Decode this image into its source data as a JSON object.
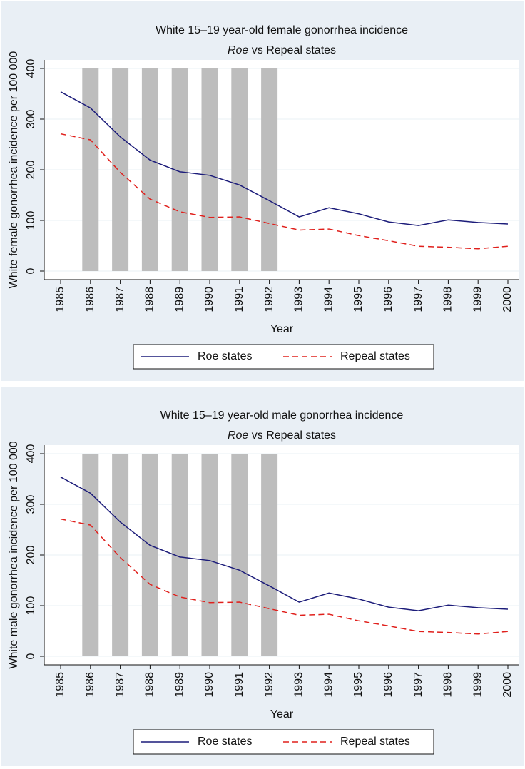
{
  "chart_data": [
    {
      "type": "line",
      "title": "White 15–19 year-old female gonorrhea incidence",
      "subtitle": [
        {
          "text": "Roe",
          "italic": true
        },
        {
          "text": " vs Repeal states"
        }
      ],
      "x_label": "Year",
      "y_label": "White female gonorrhea incidence per 100 000",
      "x": [
        1985,
        1986,
        1987,
        1988,
        1989,
        1990,
        1991,
        1992,
        1993,
        1994,
        1995,
        1996,
        1997,
        1998,
        1999,
        2000
      ],
      "series": [
        {
          "name": "Roe states",
          "color": "#1c1c7a",
          "dash": false,
          "values": [
            354,
            322,
            265,
            219,
            196,
            189,
            170,
            139,
            107,
            125,
            113,
            97,
            90,
            101,
            96,
            93
          ]
        },
        {
          "name": "Repeal states",
          "color": "#e0201c",
          "dash": true,
          "values": [
            271,
            259,
            195,
            142,
            117,
            106,
            107,
            94,
            81,
            83,
            70,
            60,
            49,
            47,
            44,
            49
          ]
        }
      ],
      "shaded_x": [
        1986,
        1987,
        1988,
        1989,
        1990,
        1991,
        1992
      ],
      "xlim": [
        1985,
        2000
      ],
      "xticks": [
        1985,
        1986,
        1987,
        1988,
        1989,
        1990,
        1991,
        1992,
        1993,
        1994,
        1995,
        1996,
        1997,
        1998,
        1999,
        2000
      ],
      "ylim": [
        0,
        400
      ],
      "yticks": [
        0,
        100,
        200,
        300,
        400
      ],
      "grid": true
    },
    {
      "type": "line",
      "title": "White 15–19 year-old male gonorrhea incidence",
      "subtitle": [
        {
          "text": "Roe",
          "italic": true
        },
        {
          "text": " vs Repeal states"
        }
      ],
      "x_label": "Year",
      "y_label": "White male gonorrhea incidence per 100 000",
      "x": [
        1985,
        1986,
        1987,
        1988,
        1989,
        1990,
        1991,
        1992,
        1993,
        1994,
        1995,
        1996,
        1997,
        1998,
        1999,
        2000
      ],
      "series": [
        {
          "name": "Roe states",
          "color": "#1c1c7a",
          "dash": false,
          "values": [
            354,
            322,
            265,
            219,
            196,
            189,
            170,
            139,
            107,
            125,
            113,
            97,
            90,
            101,
            96,
            93
          ]
        },
        {
          "name": "Repeal states",
          "color": "#e0201c",
          "dash": true,
          "values": [
            271,
            259,
            195,
            142,
            117,
            106,
            107,
            94,
            81,
            83,
            70,
            60,
            49,
            47,
            44,
            49
          ]
        }
      ],
      "shaded_x": [
        1986,
        1987,
        1988,
        1989,
        1990,
        1991,
        1992
      ],
      "xlim": [
        1985,
        2000
      ],
      "xticks": [
        1985,
        1986,
        1987,
        1988,
        1989,
        1990,
        1991,
        1992,
        1993,
        1994,
        1995,
        1996,
        1997,
        1998,
        1999,
        2000
      ],
      "ylim": [
        0,
        400
      ],
      "yticks": [
        0,
        100,
        200,
        300,
        400
      ],
      "grid": true
    }
  ]
}
